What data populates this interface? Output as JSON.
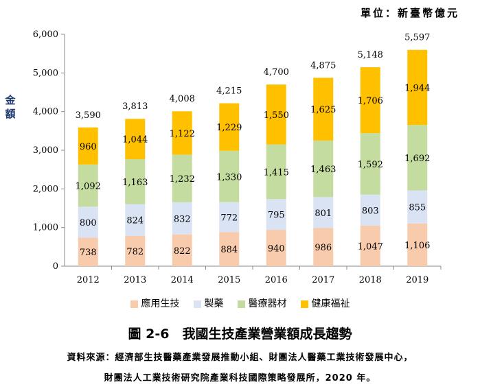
{
  "unit_label": "單位：新臺幣億元",
  "y_axis_label": "金額",
  "figure_title": "圖 2-6　我國生技產業營業額成長趨勢",
  "source_line1": "資料來源：經濟部生技醫藥產業發展推動小組、財團法人醫藥工業技術發展中心，",
  "source_line2": "財團法人工業技術研究院產業科技國際策略發展所，2020 年。",
  "colors": {
    "應用生技": "#f8cbad",
    "製藥": "#dae3f3",
    "醫療器材": "#c5dca0",
    "健康福祉": "#ffc000"
  },
  "chart_data": {
    "type": "bar",
    "stacked": true,
    "categories": [
      "2012",
      "2013",
      "2014",
      "2015",
      "2016",
      "2017",
      "2018",
      "2019"
    ],
    "series": [
      {
        "name": "應用生技",
        "values": [
          738,
          782,
          822,
          884,
          940,
          986,
          1047,
          1106
        ]
      },
      {
        "name": "製藥",
        "values": [
          800,
          824,
          832,
          772,
          795,
          801,
          803,
          855
        ]
      },
      {
        "name": "醫療器材",
        "values": [
          1092,
          1163,
          1232,
          1330,
          1415,
          1463,
          1592,
          1692
        ]
      },
      {
        "name": "健康福祉",
        "values": [
          960,
          1044,
          1122,
          1229,
          1550,
          1625,
          1706,
          1944
        ]
      }
    ],
    "totals": [
      3590,
      3813,
      4008,
      4215,
      4700,
      4875,
      5148,
      5597
    ],
    "ylim": [
      0,
      6000
    ],
    "yticks": [
      0,
      1000,
      2000,
      3000,
      4000,
      5000,
      6000
    ],
    "ytick_labels": [
      "0",
      "1,000",
      "2,000",
      "3,000",
      "4,000",
      "5,000",
      "6,000"
    ],
    "legend_position": "bottom"
  }
}
